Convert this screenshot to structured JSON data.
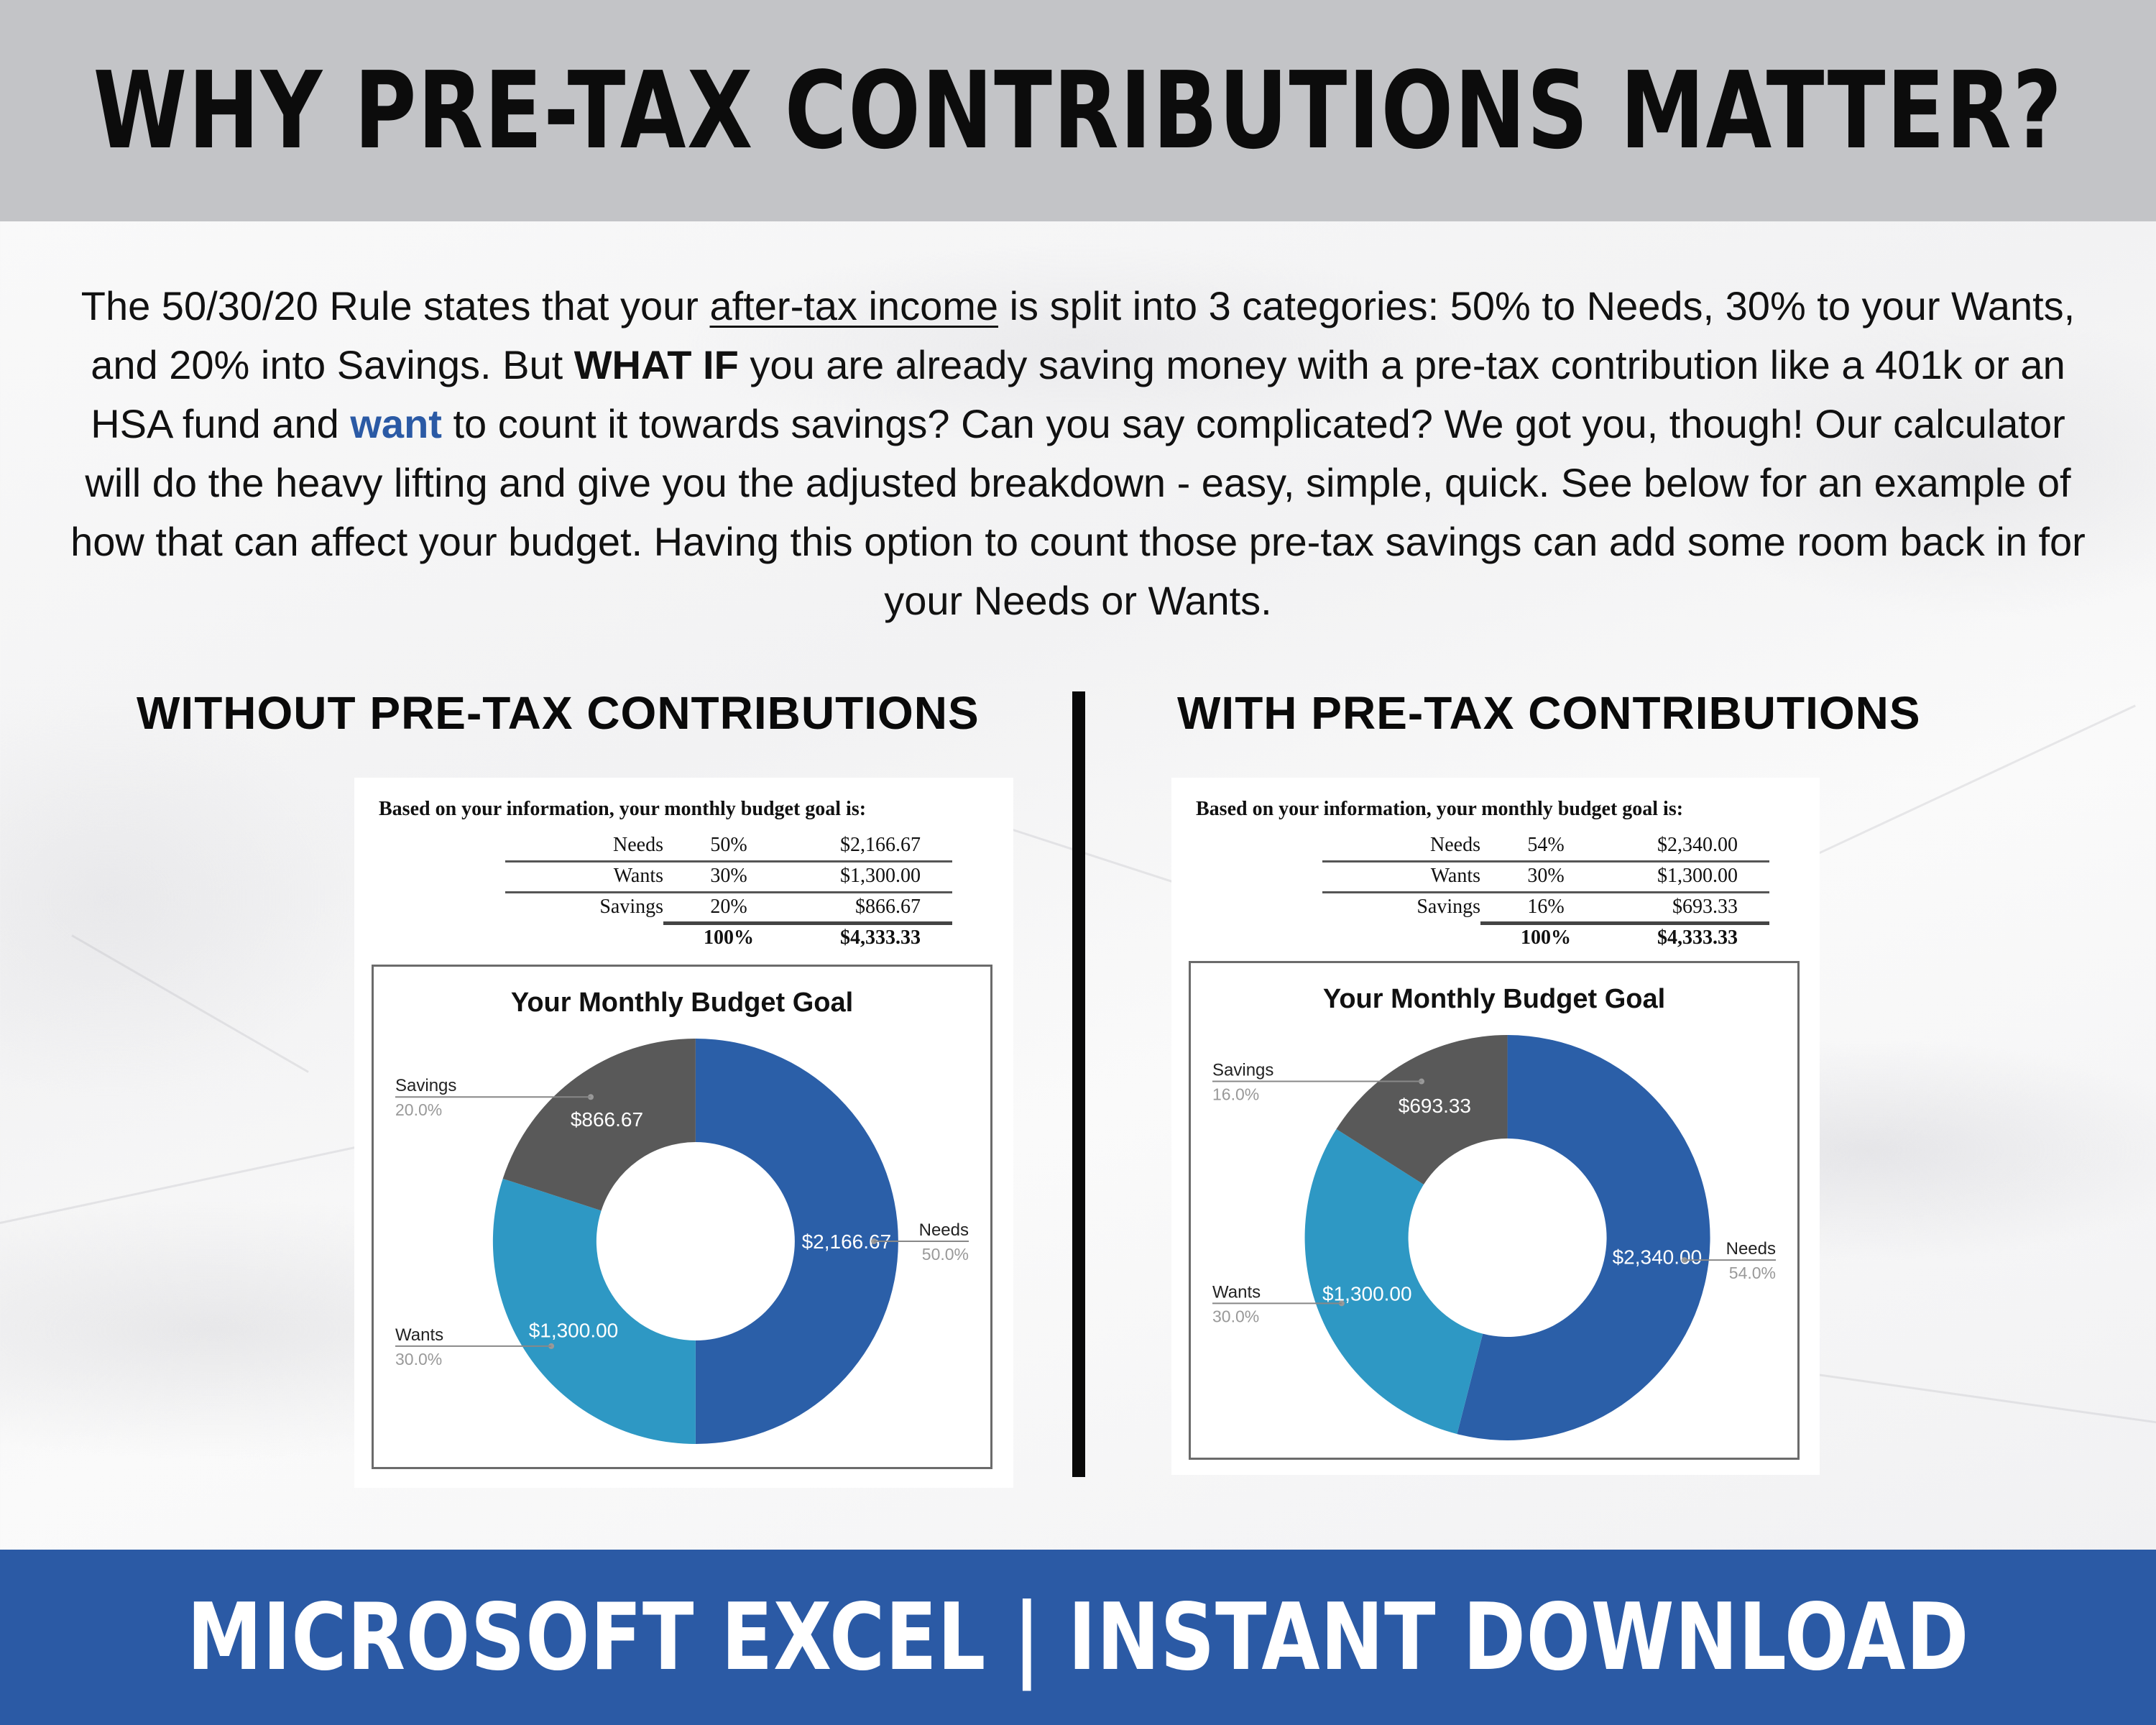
{
  "header": {
    "title": "WHY PRE-TAX CONTRIBUTIONS MATTER?"
  },
  "intro": {
    "p1": "The 50/30/20 Rule states that your ",
    "underline": "after-tax income",
    "p2": " is split into 3 categories: 50% to Needs, 30% to your Wants, and 20% into Savings. But ",
    "bold": "WHAT IF",
    "p3": " you are already saving money with a pre-tax contribution like a 401k or an HSA fund and ",
    "highlight": "want",
    "p4": " to count it towards savings? Can you say complicated? We got you, though! Our calculator will do the heavy lifting and give you the adjusted breakdown - easy, simple, quick. See below for an example of how that can affect your budget. Having this option to count those pre-tax savings can add some room back in for your Needs or Wants."
  },
  "sections": {
    "without_title": "WITHOUT PRE-TAX CONTRIBUTIONS",
    "with_title": "WITH PRE-TAX CONTRIBUTIONS"
  },
  "colors": {
    "needs": "#2b5fa8",
    "wants": "#2e98c4",
    "savings": "#595959",
    "brand": "#2b5aa5"
  },
  "without": {
    "table_title": "Based on your information, your monthly budget goal is:",
    "rows": [
      {
        "label": "Needs",
        "pct": "50%",
        "amount": "$2,166.67"
      },
      {
        "label": "Wants",
        "pct": "30%",
        "amount": "$1,300.00"
      },
      {
        "label": "Savings",
        "pct": "20%",
        "amount": "$866.67"
      }
    ],
    "total_pct": "100%",
    "total_amount": "$4,333.33"
  },
  "with": {
    "table_title": "Based on your information, your monthly budget goal is:",
    "rows": [
      {
        "label": "Needs",
        "pct": "54%",
        "amount": "$2,340.00"
      },
      {
        "label": "Wants",
        "pct": "30%",
        "amount": "$1,300.00"
      },
      {
        "label": "Savings",
        "pct": "16%",
        "amount": "$693.33"
      }
    ],
    "total_pct": "100%",
    "total_amount": "$4,333.33"
  },
  "chart_data": [
    {
      "type": "pie",
      "title": "Your Monthly Budget Goal",
      "categories": [
        "Needs",
        "Wants",
        "Savings"
      ],
      "values": [
        2166.67,
        1300.0,
        866.67
      ],
      "percent_labels": [
        "50.0%",
        "30.0%",
        "20.0%"
      ],
      "value_labels": [
        "$2,166.67",
        "$1,300.00",
        "$866.67"
      ]
    },
    {
      "type": "pie",
      "title": "Your Monthly Budget Goal",
      "categories": [
        "Needs",
        "Wants",
        "Savings"
      ],
      "values": [
        2340.0,
        1300.0,
        693.33
      ],
      "percent_labels": [
        "54.0%",
        "30.0%",
        "16.0%"
      ],
      "value_labels": [
        "$2,340.00",
        "$1,300.00",
        "$693.33"
      ]
    }
  ],
  "footer": {
    "text": "MICROSOFT EXCEL | INSTANT DOWNLOAD"
  }
}
